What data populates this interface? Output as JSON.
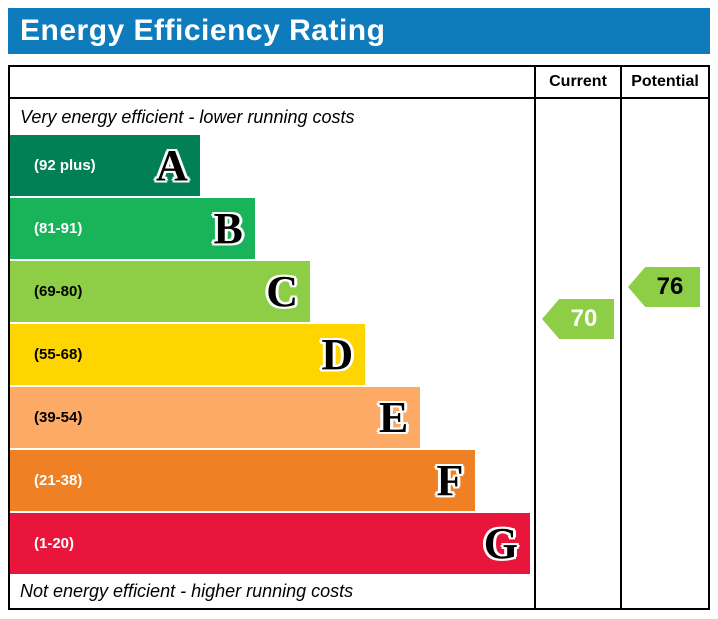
{
  "title": "Energy Efficiency Rating",
  "title_bar_color": "#0e7bbd",
  "columns": {
    "current": "Current",
    "potential": "Potential"
  },
  "top_note": "Very energy efficient - lower running costs",
  "bottom_note": "Not energy efficient - higher running costs",
  "bands": [
    {
      "letter": "A",
      "range": "(92 plus)",
      "color": "#008054",
      "range_color": "#ffffff",
      "width_pct": 36.5
    },
    {
      "letter": "B",
      "range": "(81-91)",
      "color": "#19b459",
      "range_color": "#ffffff",
      "width_pct": 47.1
    },
    {
      "letter": "C",
      "range": "(69-80)",
      "color": "#8dce46",
      "range_color": "#000000",
      "width_pct": 57.7
    },
    {
      "letter": "D",
      "range": "(55-68)",
      "color": "#ffd500",
      "range_color": "#000000",
      "width_pct": 68.3
    },
    {
      "letter": "E",
      "range": "(39-54)",
      "color": "#fcaa65",
      "range_color": "#000000",
      "width_pct": 78.9
    },
    {
      "letter": "F",
      "range": "(21-38)",
      "color": "#ef8023",
      "range_color": "#ffffff",
      "width_pct": 89.5
    },
    {
      "letter": "G",
      "range": "(1-20)",
      "color": "#e9153b",
      "range_color": "#ffffff",
      "width_pct": 100
    }
  ],
  "current": {
    "value": "70",
    "color": "#8dce46",
    "text_color": "#ffffff"
  },
  "potential": {
    "value": "76",
    "color": "#8dce46",
    "text_color": "#000000"
  },
  "chart_data": {
    "type": "bar",
    "orientation": "horizontal",
    "title": "Energy Efficiency Rating",
    "categories": [
      "A (92 plus)",
      "B (81-91)",
      "C (69-80)",
      "D (55-68)",
      "E (39-54)",
      "F (21-38)",
      "G (1-20)"
    ],
    "values": [
      36.5,
      47.1,
      57.7,
      68.3,
      78.9,
      89.5,
      100
    ],
    "band_colors": [
      "#008054",
      "#19b459",
      "#8dce46",
      "#ffd500",
      "#fcaa65",
      "#ef8023",
      "#e9153b"
    ],
    "markers": {
      "current": 70,
      "potential": 76
    },
    "marker_color": "#8dce46",
    "notes": [
      "Very energy efficient - lower running costs",
      "Not energy efficient - higher running costs"
    ],
    "legend_position": "none",
    "grid": false
  }
}
